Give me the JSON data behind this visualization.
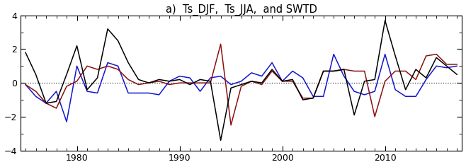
{
  "title": "a)  Ts_DJF,  Ts_JJA,  and SWTD",
  "years": [
    1975,
    1976,
    1977,
    1978,
    1979,
    1980,
    1981,
    1982,
    1983,
    1984,
    1985,
    1986,
    1987,
    1988,
    1989,
    1990,
    1991,
    1992,
    1993,
    1994,
    1995,
    1996,
    1997,
    1998,
    1999,
    2000,
    2001,
    2002,
    2003,
    2004,
    2005,
    2006,
    2007,
    2008,
    2009,
    2010,
    2011,
    2012,
    2013,
    2014,
    2015,
    2016,
    2017
  ],
  "black": [
    1.8,
    0.5,
    -1.2,
    -1.1,
    0.5,
    2.2,
    -0.4,
    0.3,
    3.2,
    2.5,
    1.2,
    0.2,
    0.0,
    0.2,
    0.1,
    0.2,
    -0.1,
    0.2,
    0.1,
    -3.4,
    -0.3,
    -0.1,
    0.1,
    0.0,
    0.8,
    0.1,
    0.2,
    -1.0,
    -0.9,
    0.7,
    0.7,
    0.8,
    -1.9,
    0.1,
    0.2,
    3.7,
    1.6,
    -0.4,
    0.8,
    0.3,
    1.5,
    1.0,
    0.5
  ],
  "red": [
    -0.1,
    -0.5,
    -1.2,
    -1.5,
    -0.2,
    0.1,
    1.0,
    0.8,
    1.0,
    0.8,
    0.2,
    -0.1,
    0.0,
    0.1,
    -0.1,
    0.0,
    0.0,
    0.0,
    0.0,
    2.3,
    -2.5,
    -0.2,
    0.1,
    -0.1,
    0.7,
    0.1,
    0.1,
    -0.9,
    -0.9,
    0.7,
    0.7,
    0.8,
    0.7,
    0.7,
    -2.0,
    0.1,
    0.7,
    0.7,
    0.2,
    1.6,
    1.7,
    1.1,
    1.1
  ],
  "blue": [
    -0.1,
    -0.8,
    -1.2,
    -0.5,
    -2.3,
    1.0,
    -0.5,
    -0.6,
    1.2,
    1.0,
    -0.6,
    -0.6,
    -0.6,
    -0.7,
    0.1,
    0.4,
    0.3,
    -0.5,
    0.3,
    0.4,
    -0.1,
    0.1,
    0.6,
    0.4,
    1.2,
    0.1,
    0.7,
    0.3,
    -0.8,
    -0.8,
    1.7,
    0.4,
    -0.5,
    -0.7,
    -0.5,
    1.7,
    -0.4,
    -0.8,
    -0.8,
    0.2,
    1.0,
    0.9,
    1.0
  ],
  "ylim": [
    -4,
    4
  ],
  "yticks": [
    -4,
    -2,
    0,
    2,
    4
  ],
  "xticks": [
    1980,
    1990,
    2000,
    2010
  ],
  "xlim_min": 1974.5,
  "xlim_max": 2017.5,
  "dotted_y": 0.0,
  "black_color": "#000000",
  "red_color": "#8B1010",
  "blue_color": "#1515CD",
  "dotted_color": "#444444",
  "bg_color": "#ffffff",
  "title_fontsize": 10.5,
  "tick_fontsize": 9,
  "linewidth_main": 1.1,
  "linewidth_dotted": 0.9
}
